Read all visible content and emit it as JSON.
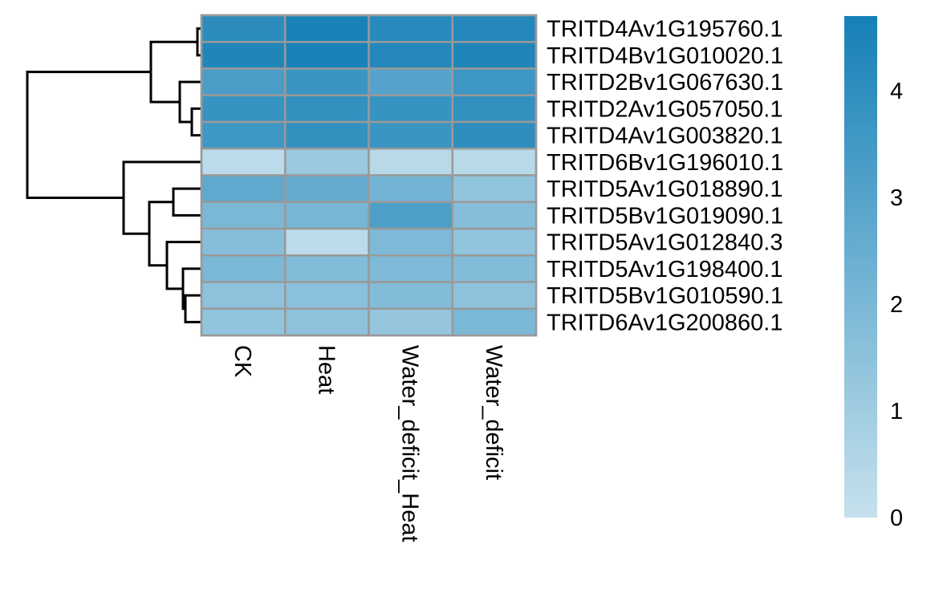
{
  "chart_data": {
    "type": "heatmap",
    "title": "",
    "rows": [
      "TRITD4Av1G195760.1",
      "TRITD4Bv1G010020.1",
      "TRITD2Bv1G067630.1",
      "TRITD2Av1G057050.1",
      "TRITD4Av1G003820.1",
      "TRITD6Bv1G196010.1",
      "TRITD5Av1G018890.1",
      "TRITD5Bv1G019090.1",
      "TRITD5Av1G012840.3",
      "TRITD5Av1G198400.1",
      "TRITD5Bv1G010590.1",
      "TRITD6Av1G200860.1"
    ],
    "columns": [
      "CK",
      "Heat",
      "Water_deficit_Heat",
      "Water_deficit"
    ],
    "values": [
      [
        4.1,
        4.6,
        4.2,
        4.3
      ],
      [
        4.4,
        4.6,
        4.3,
        4.4
      ],
      [
        3.3,
        3.7,
        3.0,
        3.6
      ],
      [
        3.8,
        3.9,
        3.8,
        3.9
      ],
      [
        3.6,
        3.9,
        3.7,
        4.0
      ],
      [
        0.3,
        1.2,
        0.4,
        0.4
      ],
      [
        2.7,
        2.6,
        2.2,
        1.4
      ],
      [
        2.0,
        2.1,
        3.2,
        1.7
      ],
      [
        1.7,
        0.3,
        1.9,
        1.4
      ],
      [
        2.0,
        1.8,
        1.9,
        1.8
      ],
      [
        1.5,
        1.6,
        1.8,
        1.5
      ],
      [
        1.4,
        1.5,
        1.3,
        2.0
      ]
    ],
    "row_dendrogram": true,
    "legend": {
      "position": "right",
      "ticks": [
        "0",
        "1",
        "2",
        "3",
        "4"
      ],
      "min": 0,
      "max": 4.7,
      "color_low": "#c6e1ed",
      "color_high": "#1580b7"
    },
    "grid": false
  }
}
